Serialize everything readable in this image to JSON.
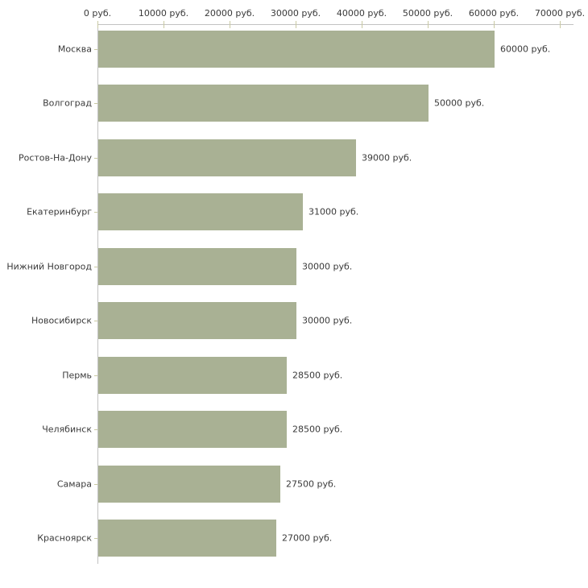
{
  "chart_data": {
    "type": "bar",
    "orientation": "horizontal",
    "title": "",
    "xlabel": "",
    "ylabel": "",
    "unit_suffix": " руб.",
    "xlim": [
      0,
      70000
    ],
    "x_tick_values": [
      0,
      10000,
      20000,
      30000,
      40000,
      50000,
      60000,
      70000
    ],
    "x_tick_labels": [
      "0 руб.",
      "10000 руб.",
      "20000 руб.",
      "30000 руб.",
      "40000 руб.",
      "50000 руб.",
      "60000 руб.",
      "70000 руб."
    ],
    "categories": [
      "Москва",
      "Волгоград",
      "Ростов-На-Дону",
      "Екатеринбург",
      "Нижний Новгород",
      "Новосибирск",
      "Пермь",
      "Челябинск",
      "Самара",
      "Красноярск"
    ],
    "values": [
      60000,
      50000,
      39000,
      31000,
      30000,
      30000,
      28500,
      28500,
      27500,
      27000
    ],
    "value_labels": [
      "60000 руб.",
      "50000 руб.",
      "39000 руб.",
      "31000 руб.",
      "30000 руб.",
      "30000 руб.",
      "28500 руб.",
      "28500 руб.",
      "27500 руб.",
      "27000 руб."
    ],
    "grid": false,
    "legend": "none",
    "colors": {
      "bar_fill": "#a9b194",
      "axis_line": "#c2c2c2",
      "tick_mark": "#c9c9a3",
      "text": "#3a3a3a",
      "background": "#ffffff"
    }
  }
}
